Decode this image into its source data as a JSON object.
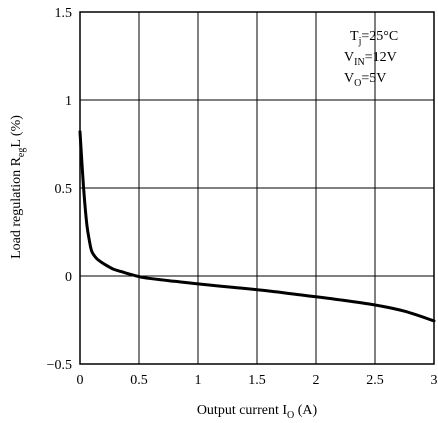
{
  "chart_data": {
    "type": "line",
    "xlabel": {
      "main": "Output current I",
      "sub": "O",
      "unit": " (A)"
    },
    "ylabel": {
      "main": "Load regulation R",
      "sub": "eg",
      "after": "L (%)"
    },
    "xlim": [
      0,
      3
    ],
    "ylim": [
      -0.5,
      1.5
    ],
    "x_ticks": [
      0,
      0.5,
      1,
      1.5,
      2,
      2.5,
      3
    ],
    "x_tick_labels": [
      "0",
      "0.5",
      "1",
      "1.5",
      "2",
      "2.5",
      "3"
    ],
    "y_ticks": [
      -0.5,
      0,
      0.5,
      1,
      1.5
    ],
    "y_tick_labels": [
      "−0.5",
      "0",
      "0.5",
      "1",
      "1.5"
    ],
    "grid": true,
    "conditions": [
      {
        "main": "T",
        "sub": "j",
        "value": "=25°C"
      },
      {
        "main": "V",
        "sub": "IN",
        "value": "=12V"
      },
      {
        "main": "V",
        "sub": "O",
        "value": "=5V"
      }
    ],
    "series": [
      {
        "color": "#000000",
        "points": [
          [
            0.0,
            0.82
          ],
          [
            0.02,
            0.6
          ],
          [
            0.04,
            0.42
          ],
          [
            0.06,
            0.28
          ],
          [
            0.08,
            0.2
          ],
          [
            0.1,
            0.14
          ],
          [
            0.14,
            0.1
          ],
          [
            0.2,
            0.07
          ],
          [
            0.28,
            0.04
          ],
          [
            0.35,
            0.025
          ],
          [
            0.45,
            0.005
          ],
          [
            0.55,
            -0.01
          ],
          [
            0.8,
            -0.03
          ],
          [
            1.0,
            -0.045
          ],
          [
            1.3,
            -0.065
          ],
          [
            1.6,
            -0.085
          ],
          [
            1.9,
            -0.11
          ],
          [
            2.2,
            -0.135
          ],
          [
            2.5,
            -0.165
          ],
          [
            2.75,
            -0.2
          ],
          [
            3.0,
            -0.255
          ]
        ]
      }
    ]
  }
}
